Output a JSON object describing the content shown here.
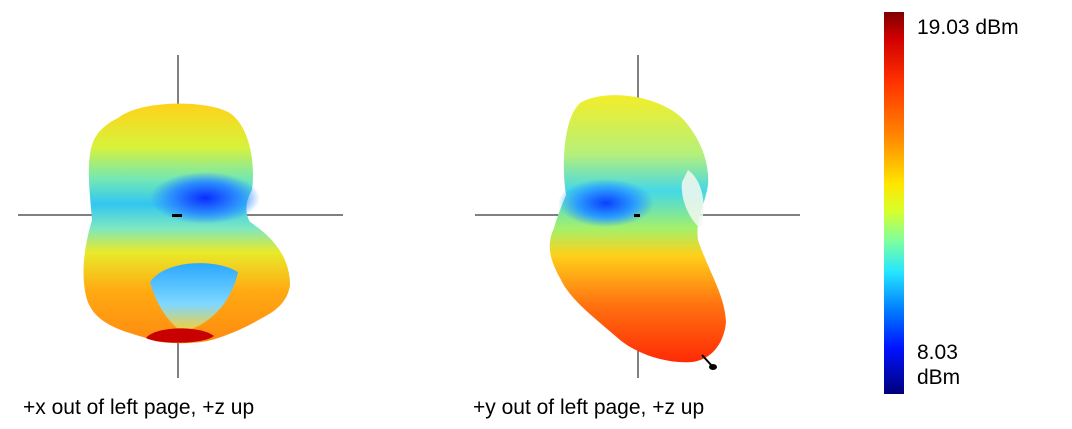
{
  "views": [
    {
      "caption": "+x out of left page, +z up"
    },
    {
      "caption": "+y out of left page, +z up"
    }
  ],
  "colorbar": {
    "max_label": "19.03 dBm",
    "min_label": "8.03 dBm",
    "max_value": 19.03,
    "min_value": 8.03,
    "unit": "dBm",
    "colormap": [
      "#7f0000",
      "#d10000",
      "#ff3000",
      "#ff8a00",
      "#ffe600",
      "#7dffa0",
      "#26e6ff",
      "#007dff",
      "#0012ff",
      "#00007a"
    ]
  }
}
